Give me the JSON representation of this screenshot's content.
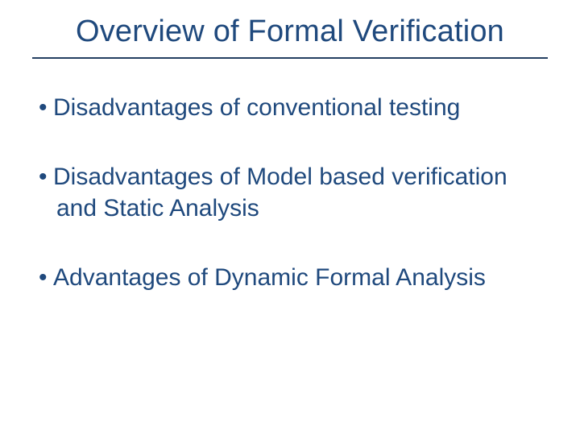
{
  "colors": {
    "title": "#1f497d",
    "bullet_dot": "#1f497d",
    "bullet_text": "#1f497d",
    "rule": "#254061",
    "background": "#ffffff"
  },
  "title": "Overview of Formal Verification",
  "bullet_marker": "•",
  "bullets": [
    "Disadvantages of conventional testing",
    "Disadvantages of Model based verification and Static Analysis",
    "Advantages of Dynamic Formal Analysis"
  ]
}
